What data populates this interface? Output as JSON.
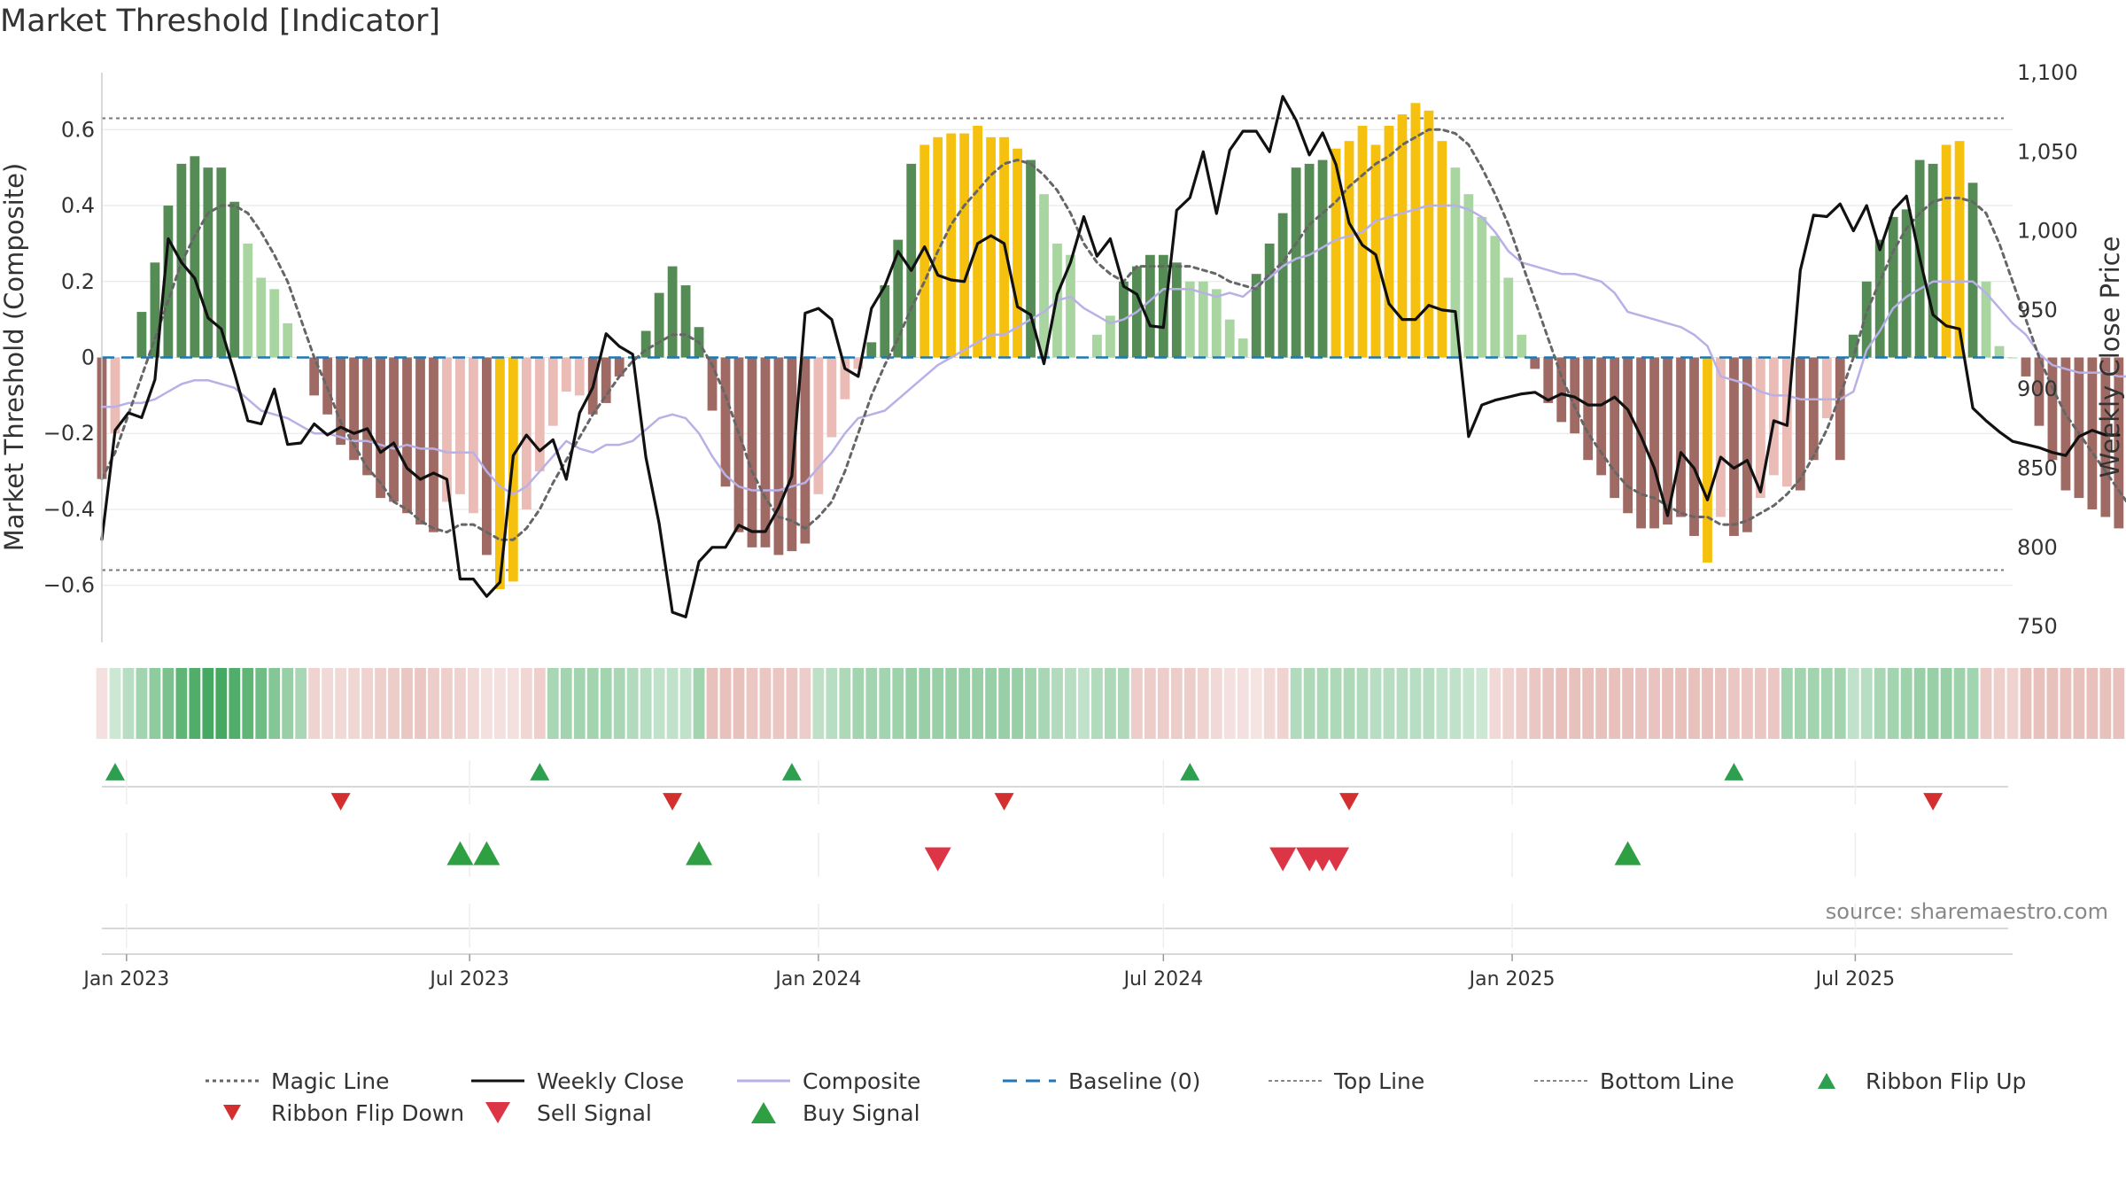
{
  "title": "Market Threshold [Indicator]",
  "source": "source: sharemaestro.com",
  "chart_data": {
    "type": "bar",
    "ylabel_left": "Market Threshold (Composite)",
    "ylabel_right": "Weekly Close Price",
    "ylim_left": [
      -0.75,
      0.75
    ],
    "ylim_right": [
      740,
      1100
    ],
    "yticks_left": [
      -0.6,
      -0.4,
      -0.2,
      0,
      0.2,
      0.4,
      0.6
    ],
    "yticks_left_labels": [
      "−0.6",
      "−0.4",
      "−0.2",
      "0",
      "0.2",
      "0.4",
      "0.6"
    ],
    "yticks_right": [
      750,
      800,
      850,
      900,
      950,
      1000,
      1050,
      1100
    ],
    "yticks_right_labels": [
      "750",
      "800",
      "850",
      "900",
      "950",
      "1,000",
      "1,050",
      "1,100"
    ],
    "x_range": [
      "2022-12-19",
      "2025-09-22"
    ],
    "xticks": [
      "2023-01-01",
      "2023-07-01",
      "2024-01-01",
      "2024-07-01",
      "2025-01-01",
      "2025-07-01"
    ],
    "xtick_labels": [
      "Jan 2023",
      "Jul 2023",
      "Jan 2024",
      "Jul 2024",
      "Jan 2025",
      "Jul 2025"
    ],
    "start_date": "2022-12-19",
    "top_line": 0.63,
    "bottom_line": -0.56,
    "composite_bars": [
      -0.32,
      -0.2,
      0.0,
      0.12,
      0.25,
      0.4,
      0.51,
      0.53,
      0.5,
      0.5,
      0.41,
      0.3,
      0.21,
      0.18,
      0.09,
      0.0,
      -0.1,
      -0.15,
      -0.23,
      -0.27,
      -0.31,
      -0.37,
      -0.38,
      -0.41,
      -0.44,
      -0.46,
      -0.38,
      -0.36,
      -0.41,
      -0.52,
      -0.61,
      -0.59,
      -0.4,
      -0.3,
      -0.18,
      -0.09,
      -0.1,
      -0.15,
      -0.12,
      -0.05,
      0.0,
      0.07,
      0.17,
      0.24,
      0.19,
      0.08,
      -0.14,
      -0.34,
      -0.46,
      -0.5,
      -0.5,
      -0.52,
      -0.51,
      -0.49,
      -0.36,
      -0.21,
      -0.11,
      -0.03,
      0.04,
      0.19,
      0.31,
      0.51,
      0.56,
      0.58,
      0.59,
      0.59,
      0.61,
      0.58,
      0.58,
      0.55,
      0.52,
      0.43,
      0.3,
      0.27,
      0.0,
      0.06,
      0.11,
      0.2,
      0.24,
      0.27,
      0.27,
      0.25,
      0.2,
      0.2,
      0.18,
      0.1,
      0.05,
      0.22,
      0.3,
      0.38,
      0.5,
      0.51,
      0.52,
      0.55,
      0.57,
      0.61,
      0.56,
      0.61,
      0.64,
      0.67,
      0.65,
      0.57,
      0.5,
      0.43,
      0.37,
      0.32,
      0.21,
      0.06,
      -0.03,
      -0.12,
      -0.17,
      -0.2,
      -0.27,
      -0.31,
      -0.37,
      -0.41,
      -0.45,
      -0.45,
      -0.44,
      -0.42,
      -0.47,
      -0.54,
      -0.42,
      -0.47,
      -0.46,
      -0.37,
      -0.31,
      -0.34,
      -0.35,
      -0.27,
      -0.16,
      -0.27,
      0.06,
      0.2,
      0.31,
      0.37,
      0.39,
      0.52,
      0.51,
      0.56,
      0.57,
      0.46,
      0.2,
      0.03,
      0.0,
      -0.05,
      -0.18,
      -0.27,
      -0.35,
      -0.37,
      -0.4,
      -0.42,
      -0.45,
      -0.45,
      -0.44
    ],
    "composite_line": [
      -0.13,
      -0.13,
      -0.12,
      -0.12,
      -0.11,
      -0.09,
      -0.07,
      -0.06,
      -0.06,
      -0.07,
      -0.08,
      -0.11,
      -0.14,
      -0.15,
      -0.16,
      -0.18,
      -0.2,
      -0.2,
      -0.21,
      -0.22,
      -0.22,
      -0.23,
      -0.24,
      -0.23,
      -0.24,
      -0.24,
      -0.25,
      -0.25,
      -0.25,
      -0.3,
      -0.34,
      -0.36,
      -0.34,
      -0.3,
      -0.26,
      -0.22,
      -0.24,
      -0.25,
      -0.23,
      -0.23,
      -0.22,
      -0.19,
      -0.16,
      -0.15,
      -0.16,
      -0.2,
      -0.26,
      -0.31,
      -0.34,
      -0.35,
      -0.35,
      -0.35,
      -0.34,
      -0.33,
      -0.29,
      -0.25,
      -0.2,
      -0.16,
      -0.15,
      -0.14,
      -0.11,
      -0.08,
      -0.05,
      -0.02,
      0.0,
      0.02,
      0.04,
      0.06,
      0.06,
      0.08,
      0.1,
      0.12,
      0.15,
      0.16,
      0.13,
      0.11,
      0.09,
      0.1,
      0.12,
      0.15,
      0.18,
      0.18,
      0.18,
      0.17,
      0.16,
      0.17,
      0.16,
      0.19,
      0.21,
      0.24,
      0.26,
      0.27,
      0.29,
      0.31,
      0.32,
      0.33,
      0.36,
      0.37,
      0.38,
      0.39,
      0.4,
      0.4,
      0.4,
      0.39,
      0.37,
      0.33,
      0.28,
      0.25,
      0.24,
      0.23,
      0.22,
      0.22,
      0.21,
      0.2,
      0.17,
      0.12,
      0.11,
      0.1,
      0.09,
      0.08,
      0.06,
      0.03,
      -0.05,
      -0.06,
      -0.07,
      -0.09,
      -0.1,
      -0.1,
      -0.11,
      -0.11,
      -0.11,
      -0.11,
      -0.09,
      0.02,
      0.07,
      0.13,
      0.16,
      0.18,
      0.2,
      0.2,
      0.2,
      0.2,
      0.17,
      0.13,
      0.09,
      0.06,
      0.01,
      -0.02,
      -0.03,
      -0.04,
      -0.04,
      -0.04,
      -0.05,
      -0.05,
      -0.05
    ],
    "magic_line": [
      -0.32,
      -0.25,
      -0.15,
      -0.05,
      0.05,
      0.15,
      0.25,
      0.32,
      0.38,
      0.4,
      0.4,
      0.38,
      0.33,
      0.27,
      0.2,
      0.1,
      0.0,
      -0.08,
      -0.17,
      -0.23,
      -0.29,
      -0.33,
      -0.38,
      -0.4,
      -0.43,
      -0.45,
      -0.46,
      -0.44,
      -0.44,
      -0.46,
      -0.48,
      -0.48,
      -0.45,
      -0.4,
      -0.33,
      -0.27,
      -0.21,
      -0.15,
      -0.1,
      -0.05,
      -0.01,
      0.02,
      0.04,
      0.06,
      0.06,
      0.04,
      -0.02,
      -0.1,
      -0.2,
      -0.3,
      -0.37,
      -0.42,
      -0.43,
      -0.45,
      -0.42,
      -0.38,
      -0.3,
      -0.2,
      -0.1,
      -0.02,
      0.05,
      0.13,
      0.2,
      0.28,
      0.35,
      0.4,
      0.44,
      0.48,
      0.51,
      0.52,
      0.51,
      0.48,
      0.44,
      0.38,
      0.3,
      0.25,
      0.22,
      0.2,
      0.24,
      0.24,
      0.24,
      0.24,
      0.24,
      0.23,
      0.22,
      0.2,
      0.19,
      0.18,
      0.22,
      0.25,
      0.3,
      0.35,
      0.38,
      0.41,
      0.45,
      0.48,
      0.51,
      0.53,
      0.56,
      0.58,
      0.6,
      0.6,
      0.59,
      0.56,
      0.5,
      0.43,
      0.35,
      0.25,
      0.15,
      0.05,
      -0.05,
      -0.13,
      -0.2,
      -0.25,
      -0.3,
      -0.34,
      -0.36,
      -0.37,
      -0.39,
      -0.41,
      -0.42,
      -0.42,
      -0.44,
      -0.44,
      -0.43,
      -0.41,
      -0.39,
      -0.36,
      -0.32,
      -0.26,
      -0.19,
      -0.1,
      0.0,
      0.12,
      0.2,
      0.28,
      0.34,
      0.38,
      0.41,
      0.42,
      0.42,
      0.41,
      0.38,
      0.3,
      0.2,
      0.1,
      0.0,
      -0.08,
      -0.15,
      -0.2,
      -0.25,
      -0.3,
      -0.35,
      -0.4,
      -0.45
    ],
    "weekly_close": [
      805,
      874,
      885,
      882,
      906,
      995,
      980,
      970,
      945,
      938,
      910,
      880,
      878,
      900,
      865,
      866,
      878,
      871,
      876,
      872,
      875,
      860,
      866,
      850,
      843,
      847,
      843,
      780,
      780,
      769,
      778,
      858,
      871,
      861,
      868,
      843,
      885,
      901,
      935,
      927,
      922,
      857,
      815,
      759,
      756,
      791,
      800,
      800,
      814,
      810,
      810,
      825,
      845,
      948,
      951,
      944,
      913,
      908,
      951,
      965,
      987,
      975,
      990,
      972,
      969,
      968,
      992,
      997,
      992,
      952,
      947,
      916,
      960,
      980,
      1009,
      984,
      995,
      965,
      960,
      940,
      939,
      1013,
      1021,
      1050,
      1011,
      1051,
      1063,
      1063,
      1050,
      1085,
      1070,
      1048,
      1062,
      1042,
      1005,
      991,
      985,
      954,
      944,
      944,
      953,
      950,
      949,
      870,
      890,
      893,
      895,
      897,
      898,
      893,
      897,
      895,
      890,
      890,
      895,
      887,
      870,
      850,
      820,
      860,
      850,
      830,
      857,
      850,
      855,
      835,
      880,
      877,
      975,
      1010,
      1009,
      1017,
      1000,
      1016,
      988,
      1013,
      1022,
      983,
      947,
      940,
      938,
      888,
      880,
      873,
      867,
      865,
      863,
      860,
      858,
      870,
      874,
      871,
      871
    ]
  },
  "ribbon": {
    "alphas": [
      0.25,
      0.25,
      0.35,
      0.45,
      0.55,
      0.65,
      0.78,
      0.85,
      0.9,
      0.9,
      0.85,
      0.78,
      0.7,
      0.6,
      0.5,
      0.42,
      0.35,
      0.3,
      0.3,
      0.32,
      0.35,
      0.38,
      0.4,
      0.45,
      0.45,
      0.4,
      0.38,
      0.35,
      0.3,
      0.25,
      0.25,
      0.25,
      0.32,
      0.38,
      0.42,
      0.45,
      0.45,
      0.45,
      0.45,
      0.42,
      0.38,
      0.35,
      0.3,
      0.3,
      0.3,
      0.45,
      0.5,
      0.5,
      0.5,
      0.45,
      0.45,
      0.45,
      0.45,
      0.4,
      0.32,
      0.35,
      0.4,
      0.45,
      0.45,
      0.45,
      0.48,
      0.5,
      0.5,
      0.5,
      0.5,
      0.5,
      0.5,
      0.5,
      0.5,
      0.5,
      0.45,
      0.42,
      0.38,
      0.35,
      0.3,
      0.38,
      0.4,
      0.4,
      0.4,
      0.4,
      0.4,
      0.4,
      0.4,
      0.35,
      0.3,
      0.25,
      0.25,
      0.22,
      0.3,
      0.35,
      0.38,
      0.4,
      0.4,
      0.4,
      0.4,
      0.38,
      0.35,
      0.35,
      0.35,
      0.35,
      0.35,
      0.3,
      0.3,
      0.28,
      0.25,
      0.3,
      0.35,
      0.4,
      0.45,
      0.48,
      0.5,
      0.5,
      0.5,
      0.5,
      0.5,
      0.5,
      0.48,
      0.48,
      0.5,
      0.5,
      0.5,
      0.5,
      0.48,
      0.45,
      0.45,
      0.45,
      0.45,
      0.45,
      0.45,
      0.45,
      0.45,
      0.45,
      0.3,
      0.35,
      0.42,
      0.45,
      0.48,
      0.5,
      0.5,
      0.5,
      0.48,
      0.45,
      0.42,
      0.38,
      0.35,
      0.5,
      0.5,
      0.5,
      0.5,
      0.5,
      0.5,
      0.5,
      0.5,
      0.5,
      0.5,
      0.5
    ],
    "green": [
      false,
      true,
      true,
      true,
      true,
      true,
      true,
      true,
      true,
      true,
      true,
      true,
      true,
      true,
      true,
      true,
      false,
      false,
      false,
      false,
      false,
      false,
      false,
      false,
      false,
      false,
      false,
      false,
      false,
      false,
      false,
      false,
      false,
      false,
      true,
      true,
      true,
      true,
      true,
      true,
      true,
      true,
      true,
      true,
      true,
      true,
      false,
      false,
      false,
      false,
      false,
      false,
      false,
      false,
      true,
      true,
      true,
      true,
      true,
      true,
      true,
      true,
      true,
      true,
      true,
      true,
      true,
      true,
      true,
      true,
      true,
      true,
      true,
      true,
      true,
      true,
      true,
      true,
      false,
      false,
      false,
      false,
      false,
      false,
      false,
      false,
      false,
      false,
      false,
      false,
      true,
      true,
      true,
      true,
      true,
      true,
      true,
      true,
      true,
      true,
      true,
      true,
      true,
      true,
      true,
      false,
      false,
      false,
      false,
      false,
      false,
      false,
      false,
      false,
      false,
      false,
      false,
      false,
      false,
      false,
      false,
      false,
      false,
      false,
      false,
      false,
      false,
      true,
      true,
      true,
      true,
      true,
      true,
      true,
      true,
      true,
      true,
      true,
      true,
      true,
      true,
      true,
      false,
      false,
      false,
      false,
      false,
      false,
      false,
      false,
      false,
      false,
      false,
      false
    ]
  },
  "ribbon_flips_up": [
    "2022-12-26",
    "2023-08-07",
    "2023-12-18",
    "2024-07-15",
    "2025-04-28"
  ],
  "ribbon_flips_down": [
    "2023-04-24",
    "2023-10-16",
    "2024-04-08",
    "2024-10-07",
    "2025-08-11"
  ],
  "buy_signals": [
    "2023-06-26",
    "2023-07-10",
    "2023-10-30",
    "2025-03-03"
  ],
  "sell_signals": [
    "2024-03-04",
    "2024-09-02",
    "2024-09-16",
    "2024-09-23",
    "2024-09-30"
  ],
  "legend": [
    {
      "label": "Magic Line",
      "symbol": "dotted-dark"
    },
    {
      "label": "Weekly Close",
      "symbol": "solid-black"
    },
    {
      "label": "Composite",
      "symbol": "solid-lavender"
    },
    {
      "label": "Baseline (0)",
      "symbol": "dashed-blue"
    },
    {
      "label": "Top Line",
      "symbol": "dotted-grey"
    },
    {
      "label": "Bottom Line",
      "symbol": "dotted-grey"
    },
    {
      "label": "Ribbon Flip Up",
      "symbol": "triangle-up-green"
    },
    {
      "label": "Ribbon Flip Down",
      "symbol": "triangle-down-red"
    },
    {
      "label": "Sell Signal",
      "symbol": "triangle-down-red-large"
    },
    {
      "label": "Buy Signal",
      "symbol": "triangle-up-green-large"
    }
  ],
  "colors": {
    "pos_strong": "#558b55",
    "pos_light": "#a9d5a1",
    "neg_strong": "#a06a64",
    "neg_light": "#ebbcb6",
    "extreme": "#f6c10e",
    "ribbon_green": "#32a050",
    "ribbon_red": "#d2827a",
    "magic": "#666666",
    "close": "#111111",
    "composite": "#b8b0e6",
    "baseline": "#1f77b4",
    "threshold": "#777777",
    "flip_up": "#2e9e4f",
    "flip_down": "#d32f2f",
    "signal_up": "#2ea043",
    "signal_down": "#dc3545"
  }
}
